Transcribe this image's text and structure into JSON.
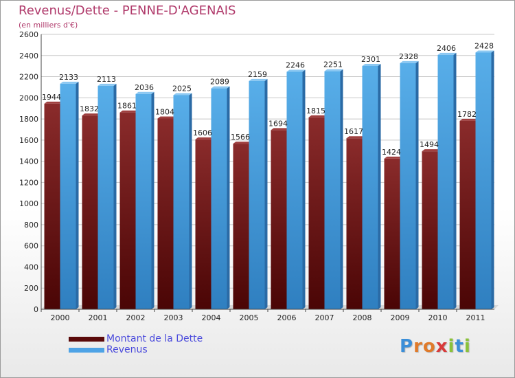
{
  "title": "Revenus/Dette - PENNE-D'AGENAIS",
  "subtitle": "(en milliers d'€)",
  "logo": {
    "letters": [
      {
        "ch": "P",
        "color": "#3a8ed8"
      },
      {
        "ch": "r",
        "color": "#e07a2a"
      },
      {
        "ch": "o",
        "color": "#e07a2a"
      },
      {
        "ch": "x",
        "color": "#d83a3a"
      },
      {
        "ch": "i",
        "color": "#8ac23a"
      },
      {
        "ch": "t",
        "color": "#3a8ed8"
      },
      {
        "ch": "i",
        "color": "#8ac23a"
      }
    ]
  },
  "chart_data": {
    "type": "bar",
    "title": "Revenus/Dette - PENNE-D'AGENAIS",
    "subtitle": "(en milliers d'€)",
    "xlabel": "",
    "ylabel": "",
    "ylim": [
      0,
      2600
    ],
    "yticks": [
      0,
      200,
      400,
      600,
      800,
      1000,
      1200,
      1400,
      1600,
      1800,
      2000,
      2200,
      2400,
      2600
    ],
    "grid": true,
    "legend_position": "bottom-left",
    "categories": [
      "2000",
      "2001",
      "2002",
      "2003",
      "2004",
      "2005",
      "2006",
      "2007",
      "2008",
      "2009",
      "2010",
      "2011"
    ],
    "series": [
      {
        "name": "Montant de la Dette",
        "color": "#7a1f1f",
        "values": [
          1944,
          1832,
          1861,
          1804,
          1606,
          1566,
          1694,
          1815,
          1617,
          1424,
          1494,
          1782
        ]
      },
      {
        "name": "Revenus",
        "color": "#4ea3e6",
        "values": [
          2133,
          2113,
          2036,
          2025,
          2089,
          2159,
          2246,
          2251,
          2301,
          2328,
          2406,
          2428
        ]
      }
    ]
  }
}
